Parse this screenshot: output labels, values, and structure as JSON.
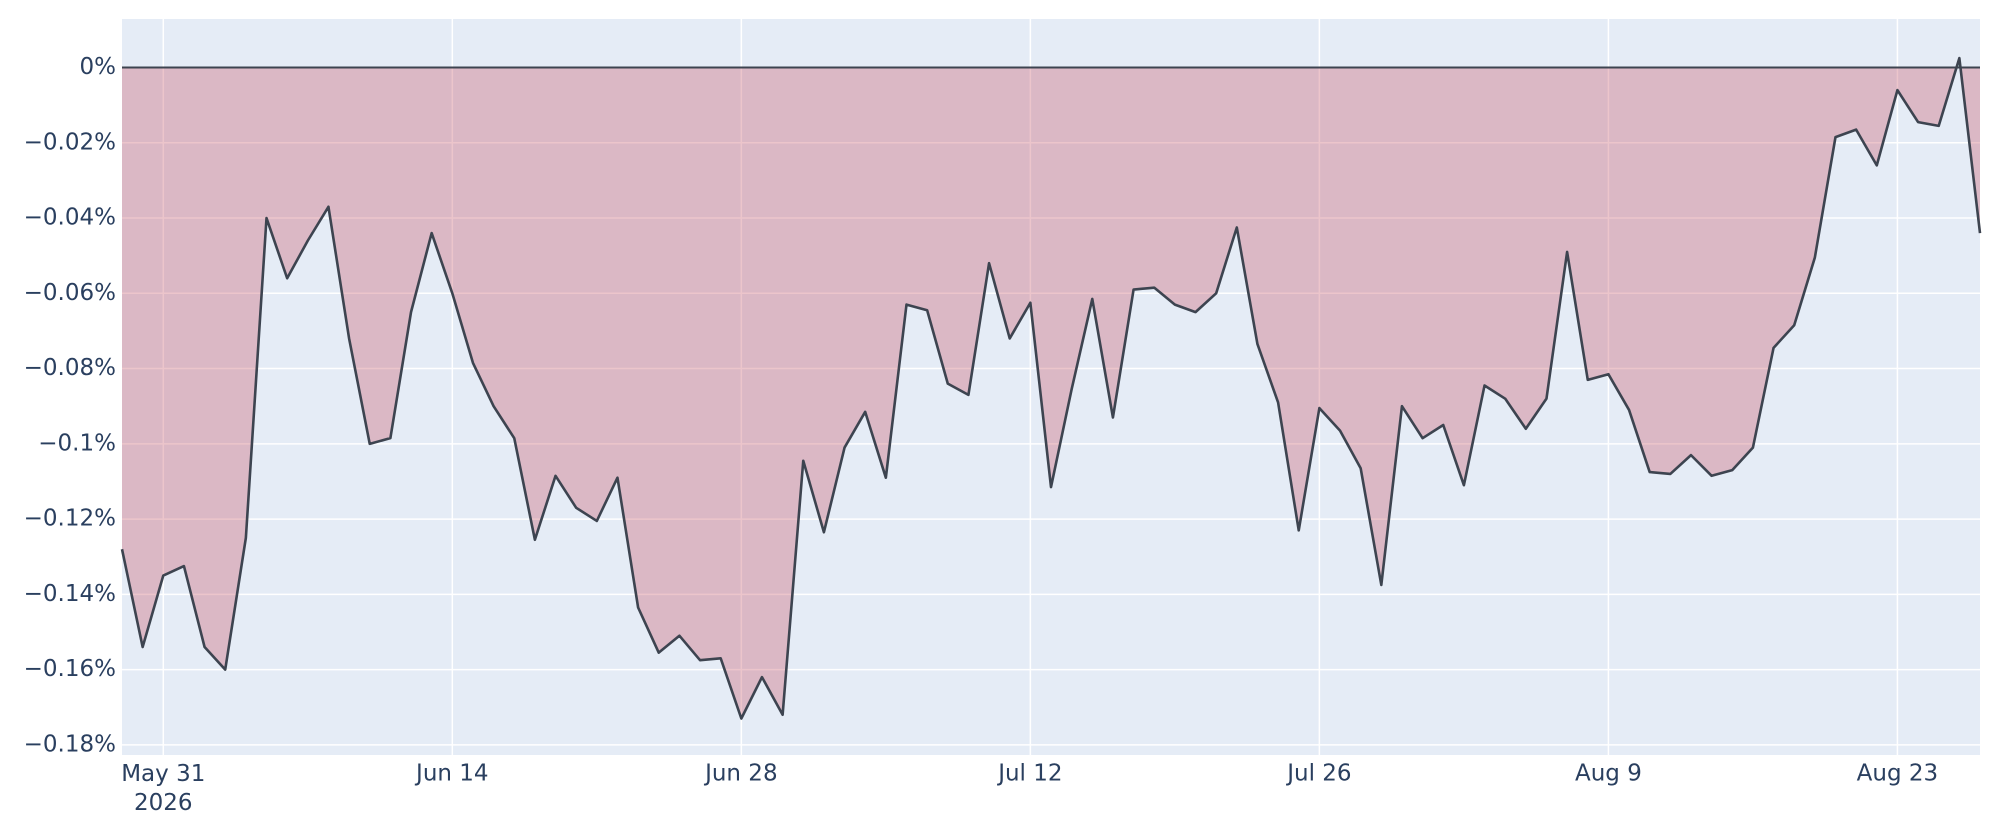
{
  "chart_data": {
    "type": "area",
    "x": [
      "2026-05-29",
      "2026-05-30",
      "2026-05-31",
      "2026-06-01",
      "2026-06-02",
      "2026-06-03",
      "2026-06-04",
      "2026-06-05",
      "2026-06-06",
      "2026-06-07",
      "2026-06-08",
      "2026-06-09",
      "2026-06-10",
      "2026-06-11",
      "2026-06-12",
      "2026-06-13",
      "2026-06-14",
      "2026-06-15",
      "2026-06-16",
      "2026-06-17",
      "2026-06-18",
      "2026-06-19",
      "2026-06-20",
      "2026-06-21",
      "2026-06-22",
      "2026-06-23",
      "2026-06-24",
      "2026-06-25",
      "2026-06-26",
      "2026-06-27",
      "2026-06-28",
      "2026-06-29",
      "2026-06-30",
      "2026-07-01",
      "2026-07-02",
      "2026-07-03",
      "2026-07-04",
      "2026-07-05",
      "2026-07-06",
      "2026-07-07",
      "2026-07-08",
      "2026-07-09",
      "2026-07-10",
      "2026-07-11",
      "2026-07-12",
      "2026-07-13",
      "2026-07-14",
      "2026-07-15",
      "2026-07-16",
      "2026-07-17",
      "2026-07-18",
      "2026-07-19",
      "2026-07-20",
      "2026-07-21",
      "2026-07-22",
      "2026-07-23",
      "2026-07-24",
      "2026-07-25",
      "2026-07-26",
      "2026-07-27",
      "2026-07-28",
      "2026-07-29",
      "2026-07-30",
      "2026-07-31",
      "2026-08-01",
      "2026-08-02",
      "2026-08-03",
      "2026-08-04",
      "2026-08-05",
      "2026-08-06",
      "2026-08-07",
      "2026-08-08",
      "2026-08-09",
      "2026-08-10",
      "2026-08-11",
      "2026-08-12",
      "2026-08-13",
      "2026-08-14",
      "2026-08-15",
      "2026-08-16",
      "2026-08-17",
      "2026-08-18",
      "2026-08-19",
      "2026-08-20",
      "2026-08-21",
      "2026-08-22",
      "2026-08-23",
      "2026-08-24",
      "2026-08-25",
      "2026-08-26",
      "2026-08-27"
    ],
    "values": [
      -0.128,
      -0.154,
      -0.135,
      -0.1325,
      -0.154,
      -0.16,
      -0.125,
      -0.04,
      -0.056,
      -0.046,
      -0.037,
      -0.072,
      -0.1,
      -0.0985,
      -0.065,
      -0.044,
      -0.06,
      -0.0785,
      -0.09,
      -0.0985,
      -0.1255,
      -0.1085,
      -0.117,
      -0.1205,
      -0.109,
      -0.1435,
      -0.1555,
      -0.151,
      -0.1575,
      -0.157,
      -0.173,
      -0.162,
      -0.172,
      -0.1045,
      -0.1235,
      -0.101,
      -0.0915,
      -0.109,
      -0.063,
      -0.0645,
      -0.084,
      -0.087,
      -0.052,
      -0.072,
      -0.0625,
      -0.1115,
      -0.0855,
      -0.0615,
      -0.093,
      -0.059,
      -0.0585,
      -0.063,
      -0.065,
      -0.06,
      -0.0425,
      -0.0735,
      -0.089,
      -0.123,
      -0.0905,
      -0.0965,
      -0.1065,
      -0.1375,
      -0.09,
      -0.0985,
      -0.095,
      -0.111,
      -0.0845,
      -0.088,
      -0.096,
      -0.088,
      -0.049,
      -0.083,
      -0.0815,
      -0.091,
      -0.1075,
      -0.108,
      -0.103,
      -0.1085,
      -0.107,
      -0.101,
      -0.0745,
      -0.0685,
      -0.0505,
      -0.0185,
      -0.0165,
      -0.026,
      -0.006,
      -0.0145,
      -0.0155,
      0.0025,
      -0.044
    ],
    "color": "#3d4450",
    "negative_fill": "rgba(200,90,105,0.35)",
    "positive_fill": "rgba(80,180,140,0.35)",
    "xlim": [
      "2026-05-29",
      "2026-08-27"
    ],
    "xticks": [
      {
        "value": "2026-05-31",
        "label": "May 31\n2026"
      },
      {
        "value": "2026-06-14",
        "label": "Jun 14"
      },
      {
        "value": "2026-06-28",
        "label": "Jun 28"
      },
      {
        "value": "2026-07-12",
        "label": "Jul 12"
      },
      {
        "value": "2026-07-26",
        "label": "Jul 26"
      },
      {
        "value": "2026-08-09",
        "label": "Aug 9"
      },
      {
        "value": "2026-08-23",
        "label": "Aug 23"
      }
    ],
    "ylim": [
      -0.1827,
      0.0129
    ],
    "yticks": [
      {
        "value": 0,
        "label": "0%"
      },
      {
        "value": -0.02,
        "label": "−0.02%"
      },
      {
        "value": -0.04,
        "label": "−0.04%"
      },
      {
        "value": -0.06,
        "label": "−0.06%"
      },
      {
        "value": -0.08,
        "label": "−0.08%"
      },
      {
        "value": -0.1,
        "label": "−0.1%"
      },
      {
        "value": -0.12,
        "label": "−0.12%"
      },
      {
        "value": -0.14,
        "label": "−0.14%"
      },
      {
        "value": -0.16,
        "label": "−0.16%"
      },
      {
        "value": -0.18,
        "label": "−0.18%"
      }
    ],
    "grid": true,
    "zero_line": true
  }
}
